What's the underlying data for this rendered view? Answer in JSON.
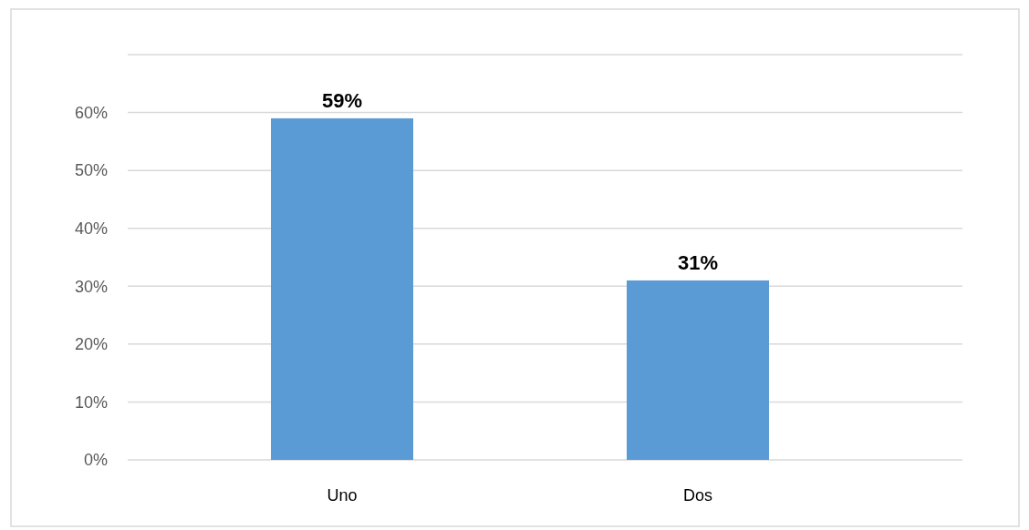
{
  "chart_data": {
    "type": "bar",
    "categories": [
      "Uno",
      "Dos"
    ],
    "values": [
      59,
      31
    ],
    "color": "#5b9bd5",
    "ylim": [
      0,
      70
    ],
    "yticks": [
      {
        "value": 0,
        "label": "0%"
      },
      {
        "value": 10,
        "label": "10%"
      },
      {
        "value": 20,
        "label": "20%"
      },
      {
        "value": 30,
        "label": "30%"
      },
      {
        "value": 40,
        "label": "40%"
      },
      {
        "value": 50,
        "label": "50%"
      },
      {
        "value": 60,
        "label": "60%"
      },
      {
        "value": 70,
        "label": null
      }
    ],
    "grid": "y",
    "value_labels": [
      "59%",
      "31%"
    ]
  }
}
